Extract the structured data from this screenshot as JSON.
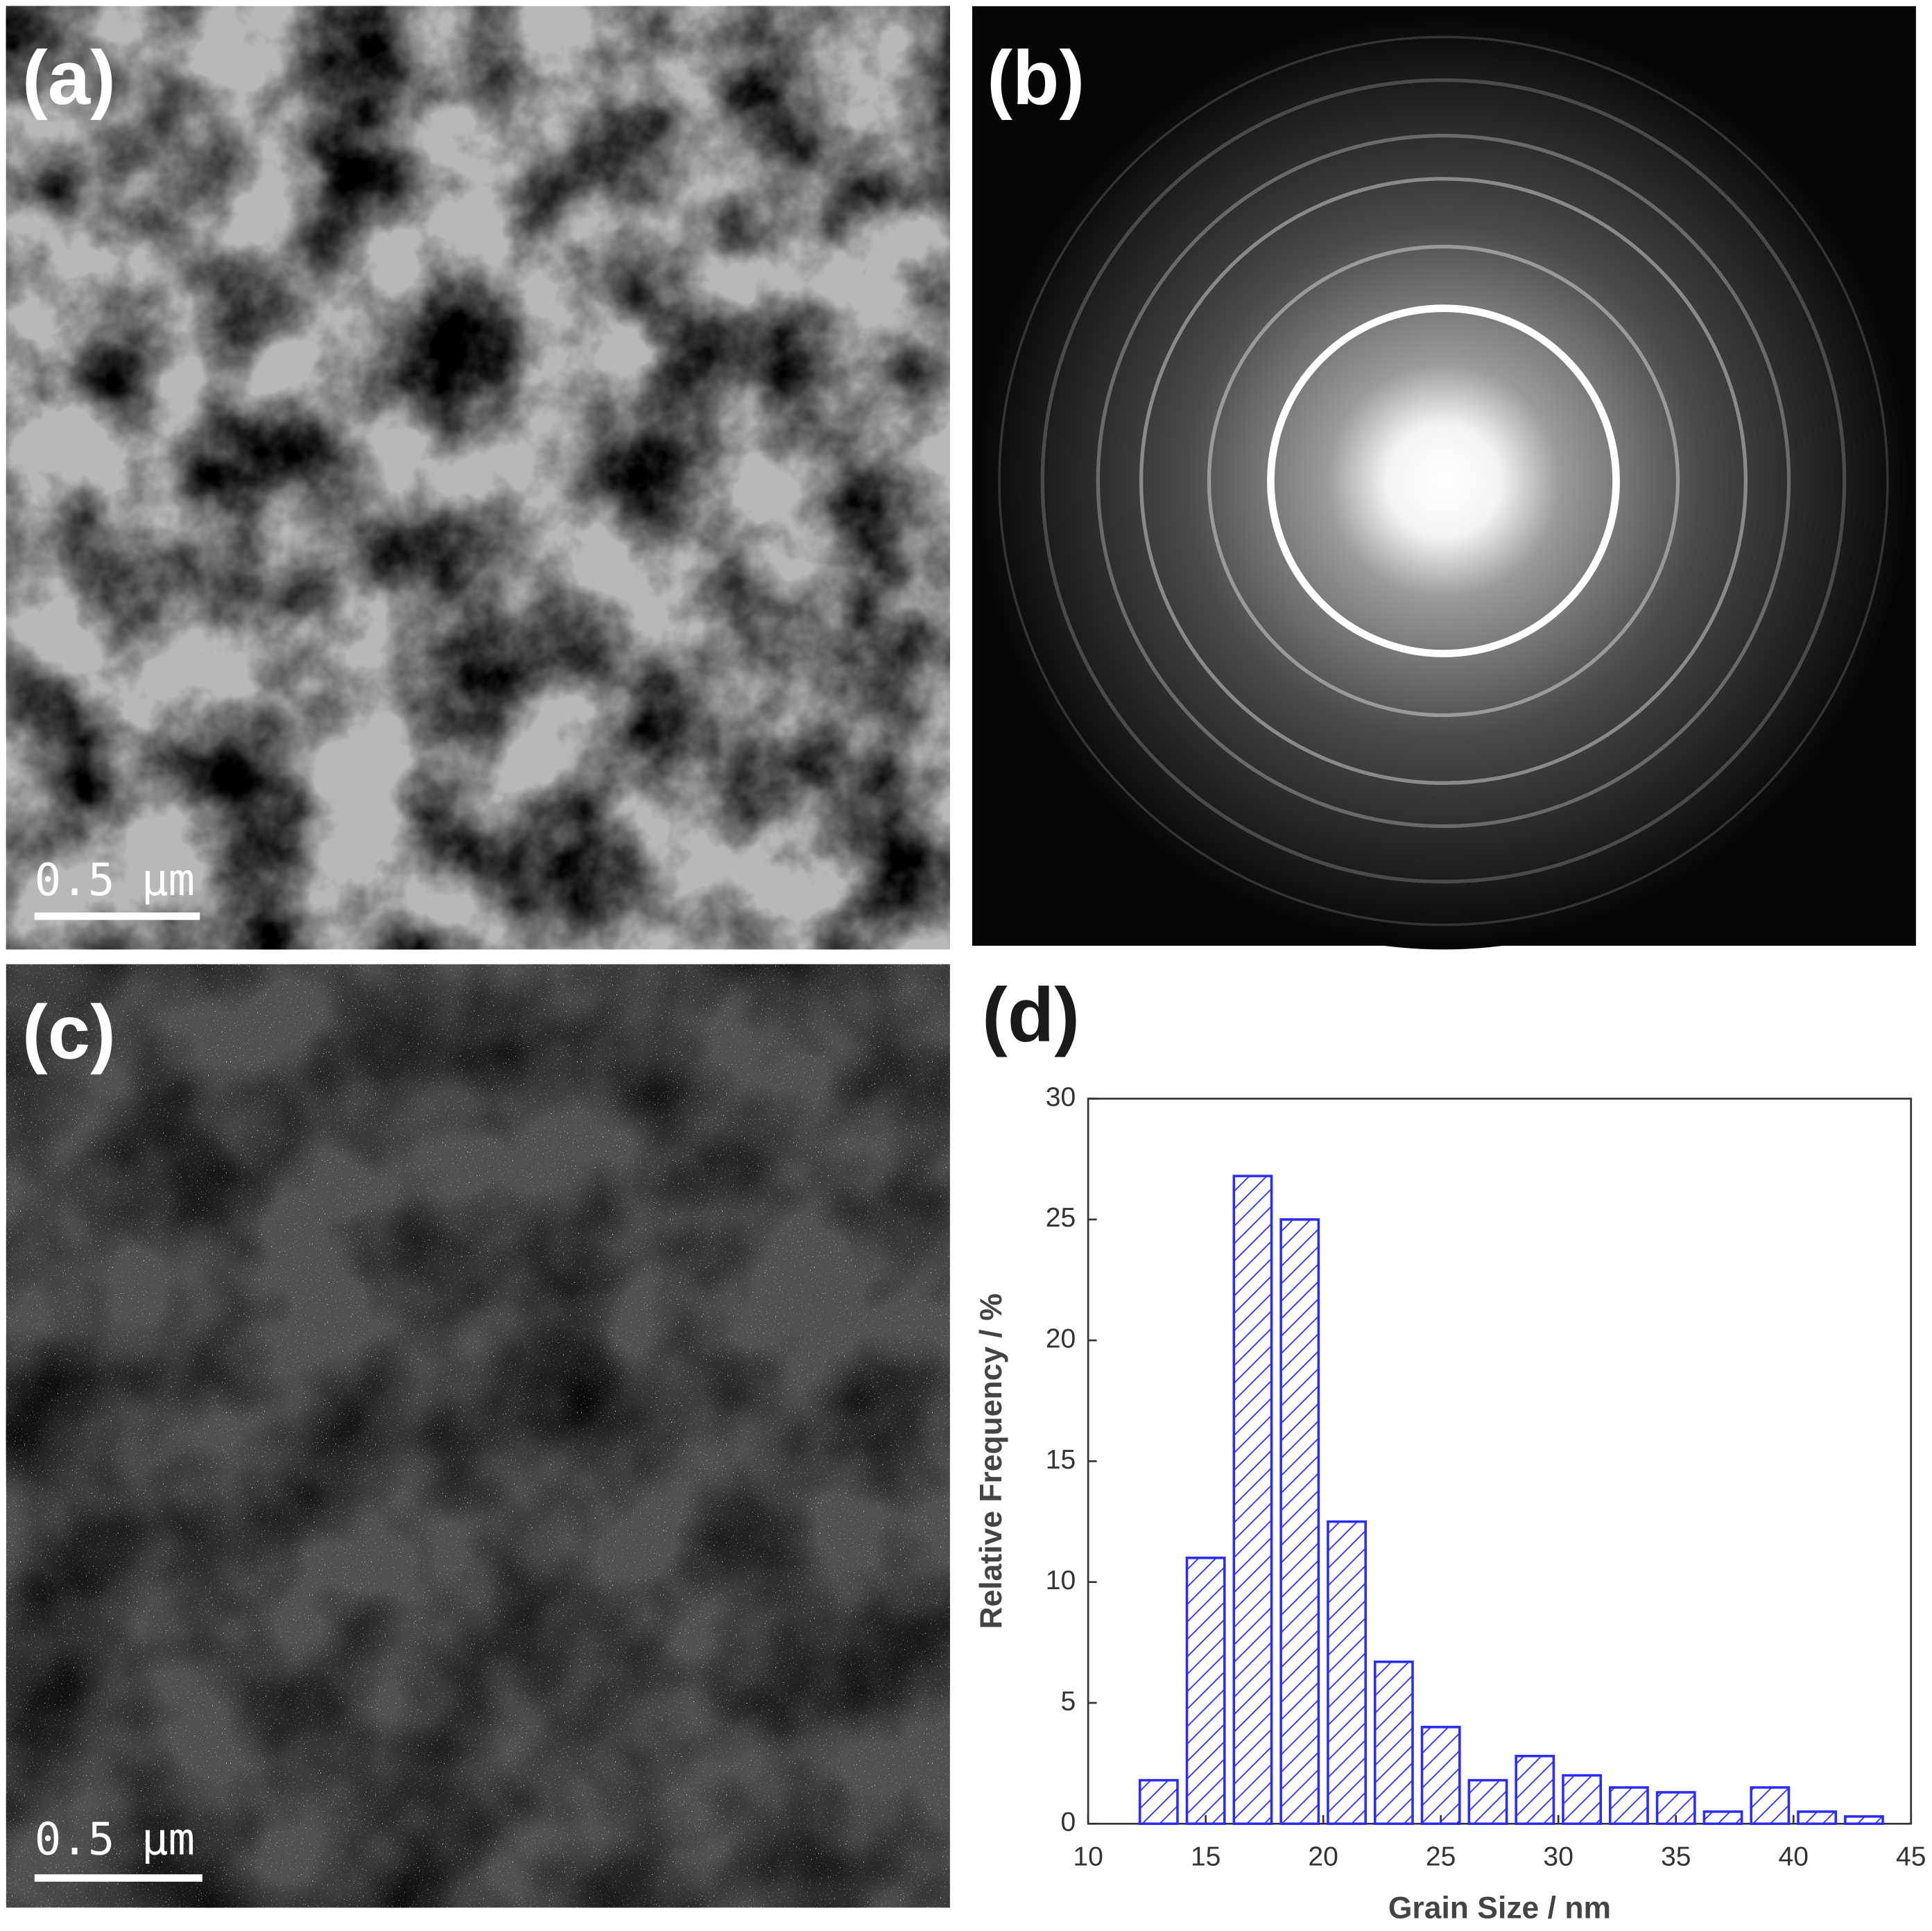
{
  "panels": {
    "labels": [
      "(a)",
      "(b)",
      "(c)",
      "(d)"
    ],
    "scale_bars": [
      "0.5 µm",
      "0.5 µm"
    ]
  },
  "chart_data": {
    "type": "histogram",
    "xlabel": "Grain Size / nm",
    "ylabel": "Relative Frequency / %",
    "bins": [
      12,
      14,
      16,
      18,
      20,
      22,
      24,
      26,
      28,
      30,
      32,
      34,
      36,
      38,
      40,
      42,
      44
    ],
    "values": [
      1.8,
      11,
      26.8,
      25,
      12.5,
      6.7,
      4,
      1.8,
      2.8,
      2,
      1.5,
      1.3,
      0.5,
      1.5,
      0.5,
      0.3
    ],
    "color": "#2b2bff",
    "xlim": [
      10,
      45
    ],
    "xticks": [
      10,
      15,
      20,
      25,
      30,
      35,
      40,
      45
    ],
    "ylim": [
      0,
      30
    ],
    "yticks": [
      0,
      5,
      10,
      15,
      20,
      25,
      30
    ]
  }
}
